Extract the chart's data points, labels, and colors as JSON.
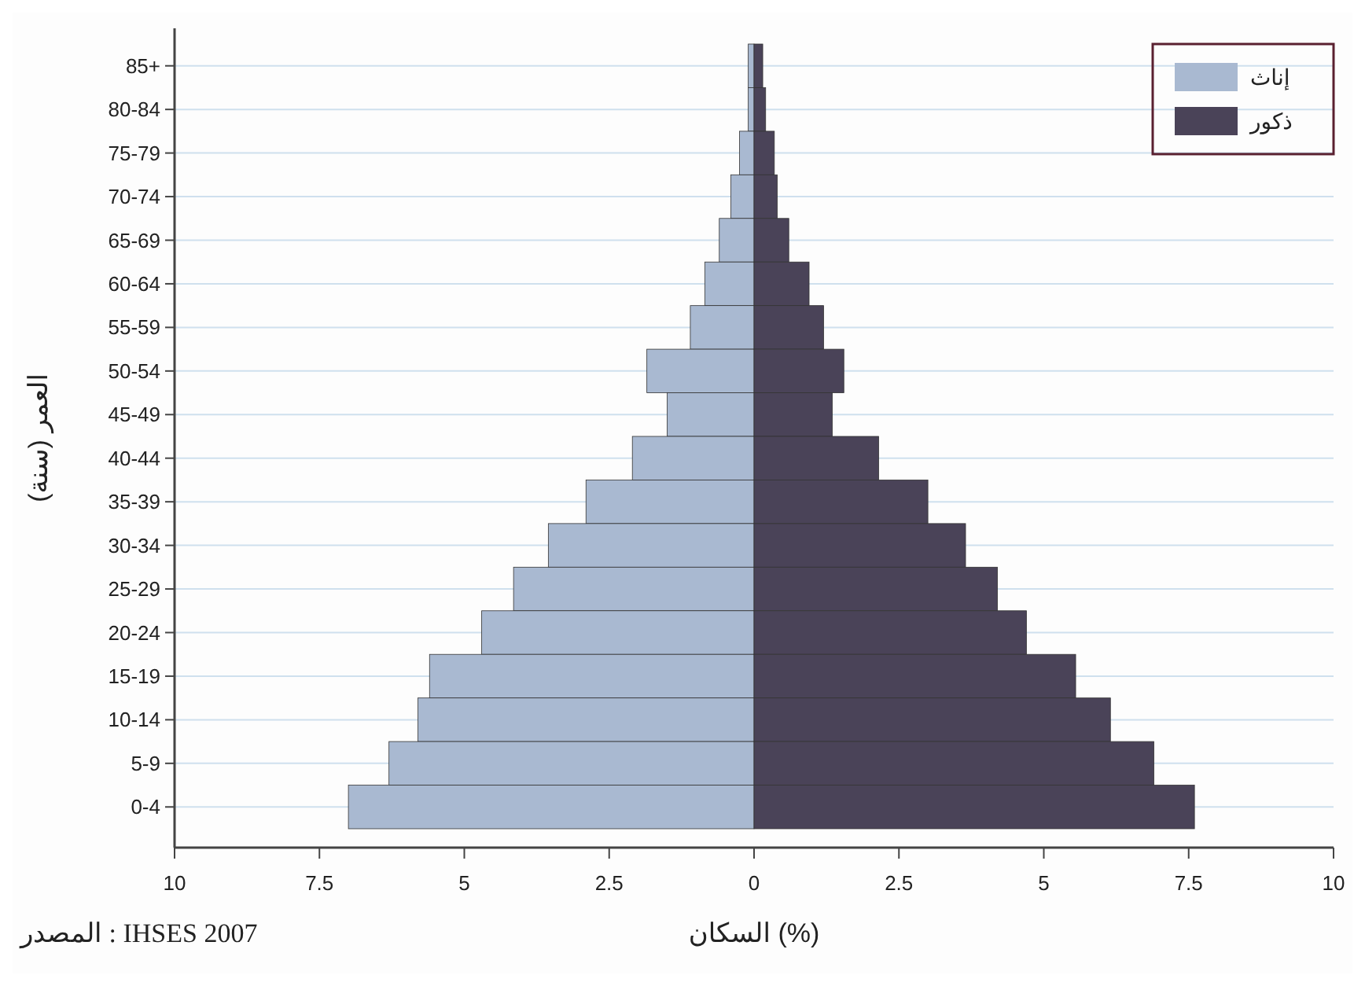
{
  "chart_data": {
    "type": "bar",
    "orientation": "horizontal",
    "xlabel": "السكان (%)",
    "ylabel": "العمر (سنة)",
    "categories": [
      "85+",
      "80-84",
      "75-79",
      "70-74",
      "65-69",
      "60-64",
      "55-59",
      "50-54",
      "45-49",
      "40-44",
      "35-39",
      "30-34",
      "25-29",
      "20-24",
      "15-19",
      "10-14",
      "5-9",
      "0-4"
    ],
    "series": [
      {
        "name": "إناث",
        "color": "#a9b9d1",
        "values": [
          -0.1,
          -0.1,
          -0.25,
          -0.4,
          -0.6,
          -0.85,
          -1.1,
          -1.85,
          -1.5,
          -2.1,
          -2.9,
          -3.55,
          -4.15,
          -4.7,
          -5.6,
          -5.8,
          -6.3,
          -7
        ]
      },
      {
        "name": "ذكور",
        "color": "#4a4358",
        "values": [
          0.15,
          0.2,
          0.35,
          0.4,
          0.6,
          0.95,
          1.2,
          1.55,
          1.35,
          2.15,
          3,
          3.65,
          4.2,
          4.7,
          5.55,
          6.15,
          6.9,
          7.6
        ]
      }
    ],
    "xlim": [
      -10,
      10
    ],
    "xticks": [
      {
        "value": -10,
        "label": "10"
      },
      {
        "value": -7.5,
        "label": "7.5"
      },
      {
        "value": -5,
        "label": "5"
      },
      {
        "value": -2.5,
        "label": "2.5"
      },
      0,
      2.5,
      5,
      7.5,
      10
    ],
    "grid": "y",
    "legend": "top right",
    "stacked": true,
    "annotations": [
      "المصدر : IHSES 2007"
    ]
  }
}
